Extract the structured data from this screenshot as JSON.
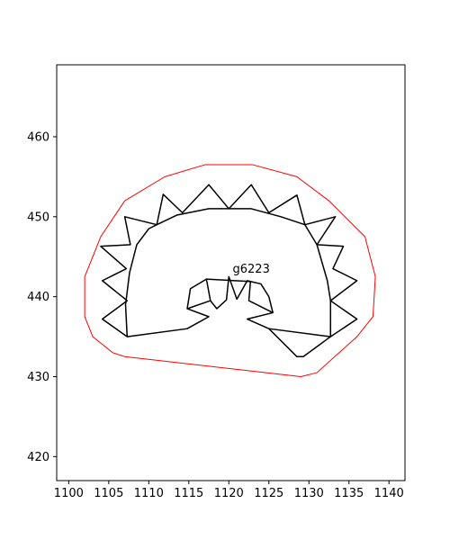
{
  "chart_data": {
    "type": "line",
    "title": "",
    "xlabel": "",
    "ylabel": "",
    "xlim": [
      1098.5,
      1142.0
    ],
    "ylim": [
      417.0,
      469.0
    ],
    "xticks": [
      1100,
      1105,
      1110,
      1115,
      1120,
      1125,
      1130,
      1135,
      1140
    ],
    "yticks": [
      420,
      430,
      440,
      450,
      460
    ],
    "grid": false,
    "legend": null,
    "annotations": [
      {
        "text": "g6223",
        "x": 1122.8,
        "y": 443.0
      }
    ],
    "series": [
      {
        "color": "#ff0000",
        "closed": true,
        "points": [
          [
            1102.0,
            442.5
          ],
          [
            1102.0,
            437.5
          ],
          [
            1103.0,
            435.0
          ],
          [
            1105.5,
            433.0
          ],
          [
            1107.0,
            432.5
          ],
          [
            1129.0,
            430.0
          ],
          [
            1131.0,
            430.5
          ],
          [
            1136.0,
            435.0
          ],
          [
            1138.0,
            437.5
          ],
          [
            1138.3,
            442.5
          ],
          [
            1137.0,
            447.5
          ],
          [
            1132.5,
            452.0
          ],
          [
            1128.5,
            455.0
          ],
          [
            1123.0,
            456.5
          ],
          [
            1117.0,
            456.5
          ],
          [
            1112.0,
            455.0
          ],
          [
            1107.0,
            452.0
          ],
          [
            1104.0,
            447.5
          ],
          [
            1102.0,
            442.5
          ]
        ]
      },
      {
        "color": "#000000",
        "closed": true,
        "points": [
          [
            1107.3,
            435.0
          ],
          [
            1114.8,
            436.0
          ],
          [
            1117.5,
            437.5
          ],
          [
            1114.8,
            438.5
          ],
          [
            1115.2,
            441.0
          ],
          [
            1117.2,
            442.2
          ],
          [
            1117.7,
            439.5
          ],
          [
            1118.5,
            438.5
          ],
          [
            1119.7,
            439.6
          ],
          [
            1120.0,
            442.5
          ],
          [
            1121.0,
            439.7
          ],
          [
            1122.3,
            442.0
          ],
          [
            1122.7,
            441.9
          ],
          [
            1122.5,
            439.5
          ],
          [
            1125.5,
            438.0
          ],
          [
            1122.3,
            437.2
          ],
          [
            1125.0,
            436.0
          ],
          [
            1128.5,
            432.5
          ],
          [
            1129.3,
            432.5
          ],
          [
            1132.7,
            435.0
          ],
          [
            1136.0,
            437.2
          ],
          [
            1132.7,
            439.5
          ],
          [
            1136.0,
            442.0
          ],
          [
            1133.0,
            443.5
          ],
          [
            1134.3,
            446.3
          ],
          [
            1131.0,
            446.5
          ],
          [
            1133.3,
            450.0
          ],
          [
            1129.5,
            449.0
          ],
          [
            1128.5,
            452.7
          ],
          [
            1125.0,
            450.5
          ],
          [
            1122.8,
            454.0
          ],
          [
            1120.0,
            451.0
          ],
          [
            1117.5,
            454.0
          ],
          [
            1114.2,
            450.5
          ],
          [
            1111.8,
            452.8
          ],
          [
            1111.0,
            449.0
          ],
          [
            1107.0,
            450.0
          ],
          [
            1107.7,
            446.5
          ],
          [
            1104.0,
            446.3
          ],
          [
            1107.2,
            443.5
          ],
          [
            1104.2,
            442.0
          ],
          [
            1107.3,
            439.5
          ],
          [
            1104.2,
            437.2
          ],
          [
            1107.3,
            435.0
          ]
        ]
      },
      {
        "color": "#000000",
        "closed": false,
        "points": [
          [
            1114.8,
            438.5
          ],
          [
            1117.7,
            439.5
          ]
        ]
      },
      {
        "color": "#000000",
        "closed": false,
        "points": [
          [
            1117.2,
            442.2
          ],
          [
            1122.7,
            441.9
          ],
          [
            1124.0,
            441.6
          ],
          [
            1125.0,
            440.0
          ],
          [
            1125.5,
            438.0
          ]
        ]
      },
      {
        "color": "#000000",
        "closed": false,
        "points": [
          [
            1125.0,
            436.0
          ],
          [
            1132.7,
            435.0
          ],
          [
            1132.7,
            439.5
          ],
          [
            1132.3,
            442.0
          ],
          [
            1131.0,
            446.5
          ]
        ]
      },
      {
        "color": "#000000",
        "closed": false,
        "points": [
          [
            1107.3,
            435.0
          ],
          [
            1107.1,
            439.0
          ],
          [
            1107.6,
            443.0
          ],
          [
            1108.5,
            446.5
          ],
          [
            1110.0,
            448.5
          ],
          [
            1111.0,
            449.0
          ],
          [
            1113.5,
            450.2
          ],
          [
            1117.5,
            451.0
          ],
          [
            1122.8,
            451.0
          ],
          [
            1126.5,
            450.0
          ],
          [
            1129.5,
            449.0
          ],
          [
            1131.0,
            446.5
          ]
        ]
      }
    ]
  }
}
